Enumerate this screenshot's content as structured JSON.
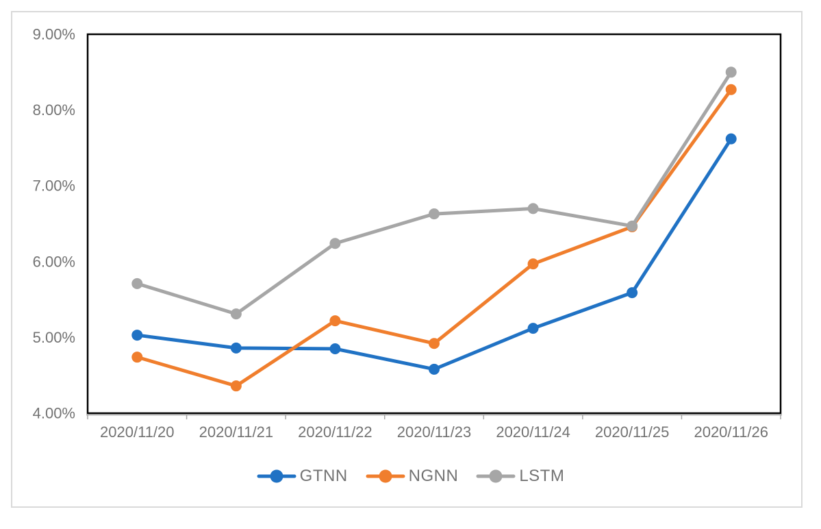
{
  "figure": {
    "background": "#ffffff",
    "border_color": "#d9d9d9"
  },
  "chart_data": {
    "type": "line",
    "title": "",
    "categories": [
      "2020/11/20",
      "2020/11/21",
      "2020/11/22",
      "2020/11/23",
      "2020/11/24",
      "2020/11/25",
      "2020/11/26"
    ],
    "series": [
      {
        "name": "GTNN",
        "color": "#2072C4",
        "values": [
          5.03,
          4.86,
          4.85,
          4.58,
          5.12,
          5.59,
          7.62
        ]
      },
      {
        "name": "NGNN",
        "color": "#F07E2D",
        "values": [
          4.74,
          4.36,
          5.22,
          4.92,
          5.97,
          6.46,
          8.27
        ]
      },
      {
        "name": "LSTM",
        "color": "#A6A6A6",
        "values": [
          5.71,
          5.31,
          6.24,
          6.63,
          6.7,
          6.47,
          8.5
        ]
      }
    ],
    "ylim": [
      4,
      9
    ],
    "y_tick_labels": [
      "4.00%",
      "5.00%",
      "6.00%",
      "7.00%",
      "8.00%",
      "9.00%"
    ],
    "unit": "percent",
    "grid": false,
    "legend_position": "bottom",
    "axis_text_color": "#737373",
    "plot_border_color": "#000000",
    "axis_line_color": "#A6A6A6"
  }
}
